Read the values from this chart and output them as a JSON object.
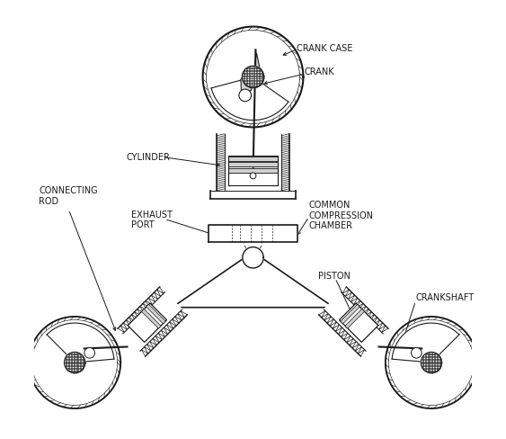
{
  "bg_color": "#ffffff",
  "line_color": "#1a1a1a",
  "fontsize": 7,
  "labels": {
    "connecting_rod": "CONNECTING\nROD",
    "crankshaft": "CRANKSHAFT",
    "piston": "PISTON",
    "exhaust_port": "EXHAUST\nPORT",
    "common_compression": "COMMON\nCOMPRESSION\nCHAMBER",
    "cylinder": "CYLINDER",
    "crank": "CRANK",
    "crank_case": "CRANK CASE"
  }
}
